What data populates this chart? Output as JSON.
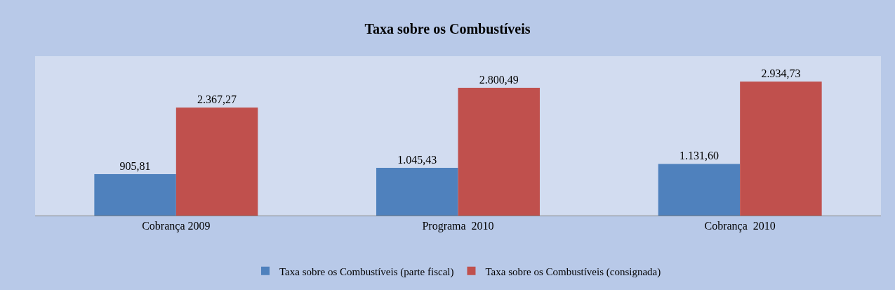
{
  "chart_data": {
    "type": "bar",
    "title": "Taxa sobre os Combustíveis",
    "categories": [
      "Cobrança 2009",
      "Programa  2010",
      "Cobrança  2010"
    ],
    "series": [
      {
        "name": "Taxa sobre os Combustíveis (parte fiscal)",
        "color": "#4f81bd",
        "values": [
          905.81,
          1045.43,
          1131.6
        ],
        "value_labels": [
          "905,81",
          "1.045,43",
          "1.131,60"
        ]
      },
      {
        "name": "Taxa sobre os Combustíveis (consignada)",
        "color": "#c0504d",
        "values": [
          2367.27,
          2800.49,
          2934.73
        ],
        "value_labels": [
          "2.367,27",
          "2.800,49",
          "2.934,73"
        ]
      }
    ],
    "legend": "bottom",
    "grid": false
  }
}
